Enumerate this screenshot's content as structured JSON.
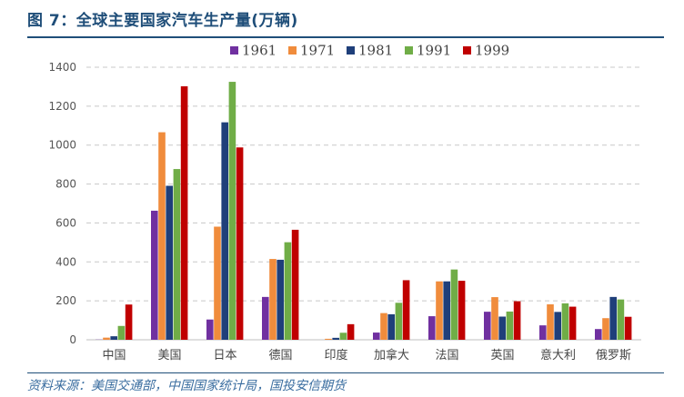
{
  "figure": {
    "title": "图 7：全球主要国家汽车生产量(万辆)",
    "source": "资料来源：美国交通部，中国国家统计局，国投安信期货"
  },
  "chart_data": {
    "type": "bar",
    "categories": [
      "中国",
      "美国",
      "日本",
      "德国",
      "印度",
      "加拿大",
      "法国",
      "英国",
      "意大利",
      "俄罗斯"
    ],
    "series": [
      {
        "name": "1961",
        "color": "#7030a0",
        "values": [
          1,
          663,
          104,
          220,
          0,
          37,
          121,
          144,
          74,
          55
        ]
      },
      {
        "name": "1971",
        "color": "#f08c3c",
        "values": [
          11,
          1066,
          581,
          415,
          5,
          137,
          300,
          219,
          182,
          111
        ]
      },
      {
        "name": "1981",
        "color": "#1f3f7a",
        "values": [
          18,
          791,
          1117,
          411,
          10,
          131,
          300,
          119,
          143,
          220
        ]
      },
      {
        "name": "1991",
        "color": "#70ad47",
        "values": [
          71,
          877,
          1325,
          501,
          36,
          190,
          361,
          145,
          187,
          207
        ]
      },
      {
        "name": "1999",
        "color": "#c00000",
        "values": [
          181,
          1302,
          988,
          565,
          80,
          306,
          303,
          198,
          170,
          118
        ]
      }
    ],
    "ylim": [
      0,
      1400
    ],
    "yticks": [
      0,
      200,
      400,
      600,
      800,
      1000,
      1200,
      1400
    ],
    "grid": true,
    "legend_position": "top"
  }
}
